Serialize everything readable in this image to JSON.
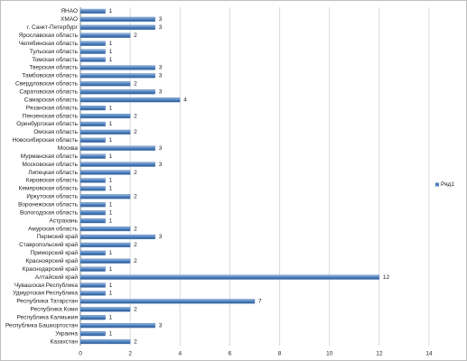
{
  "chart_data": {
    "type": "bar",
    "orientation": "horizontal",
    "categories": [
      "ЯНАО",
      "ХМАО",
      "г. Санкт-Петербург",
      "Ярославская область",
      "Челябинская область",
      "Тульская область",
      "Томская область",
      "Тверская область",
      "Тамбовская область",
      "Свердловская область",
      "Саратовская область",
      "Самарская область",
      "Рязанская область",
      "Пензенская область",
      "Оренбургская область",
      "Омская область",
      "Новосибирская область",
      "Москва",
      "Мурманская область",
      "Московская область",
      "Липецкая область",
      "Кировская область",
      "Кемеровская область",
      "Иркутская область",
      "Воронежская область",
      "Вологодская область",
      "Астрахань",
      "Амурская область",
      "Пермский край",
      "Ставропольский край",
      "Приморский край",
      "Красноярский край",
      "Краснодарский край",
      "Алтайский край",
      "Чувашская Республика",
      "Удмуртская Республика",
      "Республика Татарстан",
      "Республика Коми",
      "Республика Калмыкия",
      "Республика Башкортостан",
      "Украина",
      "Казахстан"
    ],
    "series": [
      {
        "name": "Ряд1",
        "color": "#4f81bd",
        "values": [
          1,
          3,
          3,
          2,
          1,
          1,
          1,
          3,
          3,
          2,
          3,
          4,
          1,
          2,
          1,
          2,
          1,
          3,
          1,
          3,
          2,
          1,
          1,
          2,
          1,
          1,
          1,
          2,
          3,
          2,
          1,
          2,
          1,
          12,
          1,
          1,
          7,
          2,
          1,
          3,
          1,
          2
        ]
      }
    ],
    "xlim": [
      0,
      14
    ],
    "xticks": [
      0,
      2,
      4,
      6,
      8,
      10,
      12,
      14
    ],
    "grid": true,
    "data_labels": true,
    "legend": "right"
  }
}
